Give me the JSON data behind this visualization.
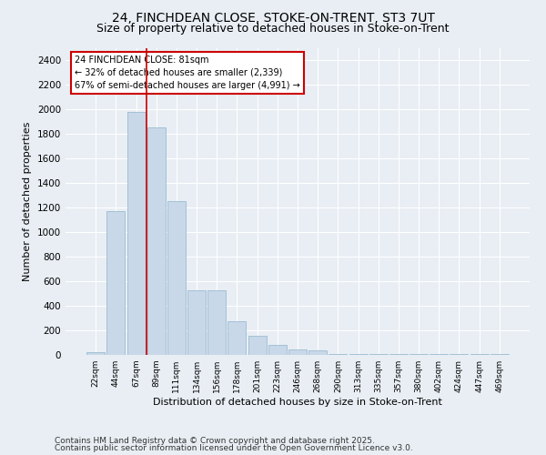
{
  "title1": "24, FINCHDEAN CLOSE, STOKE-ON-TRENT, ST3 7UT",
  "title2": "Size of property relative to detached houses in Stoke-on-Trent",
  "xlabel": "Distribution of detached houses by size in Stoke-on-Trent",
  "ylabel": "Number of detached properties",
  "categories": [
    "22sqm",
    "44sqm",
    "67sqm",
    "89sqm",
    "111sqm",
    "134sqm",
    "156sqm",
    "178sqm",
    "201sqm",
    "223sqm",
    "246sqm",
    "268sqm",
    "290sqm",
    "313sqm",
    "335sqm",
    "357sqm",
    "380sqm",
    "402sqm",
    "424sqm",
    "447sqm",
    "469sqm"
  ],
  "values": [
    25,
    1170,
    1975,
    1850,
    1250,
    525,
    525,
    275,
    155,
    85,
    45,
    35,
    5,
    5,
    5,
    5,
    5,
    5,
    5,
    5,
    5
  ],
  "bar_color": "#c8d8e8",
  "bar_edgecolor": "#90b4cc",
  "vline_color": "#cc0000",
  "vline_x_idx": 2.5,
  "annotation_text": "24 FINCHDEAN CLOSE: 81sqm\n← 32% of detached houses are smaller (2,339)\n67% of semi-detached houses are larger (4,991) →",
  "annotation_box_edgecolor": "#cc0000",
  "ylim": [
    0,
    2500
  ],
  "yticks": [
    0,
    200,
    400,
    600,
    800,
    1000,
    1200,
    1400,
    1600,
    1800,
    2000,
    2200,
    2400
  ],
  "footnote1": "Contains HM Land Registry data © Crown copyright and database right 2025.",
  "footnote2": "Contains public sector information licensed under the Open Government Licence v3.0.",
  "bg_color": "#e8eef4",
  "plot_bg_color": "#e8eef4",
  "grid_color": "#ffffff",
  "title_fontsize": 10,
  "subtitle_fontsize": 9,
  "annotation_fontsize": 7,
  "footnote_fontsize": 6.5,
  "ylabel_fontsize": 8,
  "xlabel_fontsize": 8
}
